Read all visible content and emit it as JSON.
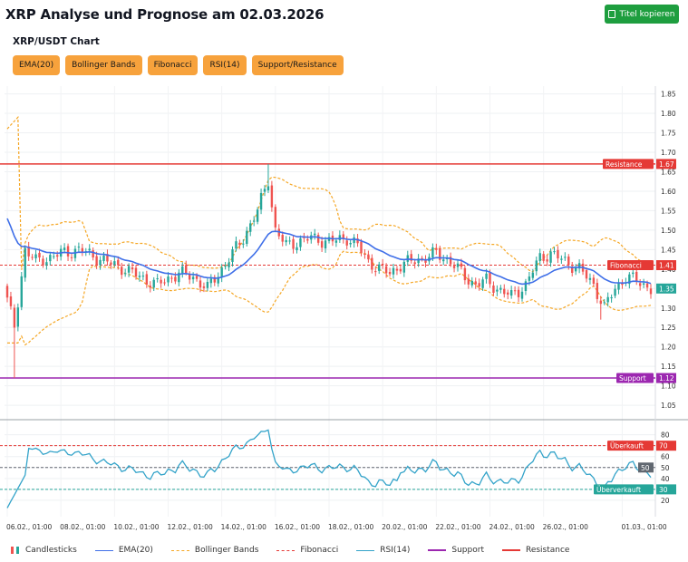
{
  "header": {
    "title": "XRP Analyse und Prognose am 02.03.2026",
    "copy_label": "Titel kopieren"
  },
  "chart_title": "XRP/USDT Chart",
  "indicators": [
    "EMA(20)",
    "Bollinger Bands",
    "Fibonacci",
    "RSI(14)",
    "Support/Resistance"
  ],
  "legend": [
    {
      "label": "Candlesticks",
      "kind": "candle"
    },
    {
      "label": "EMA(20)",
      "kind": "line",
      "color": "#3f6fe8",
      "dash": false
    },
    {
      "label": "Bollinger Bands",
      "kind": "line",
      "color": "#f5a623",
      "dash": true
    },
    {
      "label": "Fibonacci",
      "kind": "line",
      "color": "#e53935",
      "dash": true
    },
    {
      "label": "RSI(14)",
      "kind": "line",
      "color": "#33a3c9",
      "dash": false
    },
    {
      "label": "Support",
      "kind": "line",
      "color": "#9c27b0",
      "dash": false
    },
    {
      "label": "Resistance",
      "kind": "line",
      "color": "#e53935",
      "dash": false
    }
  ],
  "colors": {
    "up": "#26a69a",
    "down": "#ef5350",
    "ema": "#3f6fe8",
    "bollinger": "#f5a623",
    "rsi": "#33a3c9",
    "support": "#9c27b0",
    "resistance": "#e53935",
    "fibonacci": "#e53935",
    "current": "#26a69a"
  },
  "chart_data": {
    "type": "candlestick",
    "price_axis": {
      "min": 1.02,
      "max": 1.87,
      "ticks": [
        1.05,
        1.1,
        1.15,
        1.2,
        1.25,
        1.3,
        1.35,
        1.4,
        1.45,
        1.5,
        1.55,
        1.6,
        1.65,
        1.7,
        1.75,
        1.8,
        1.85
      ],
      "tick_labels": [
        "1.05",
        "1.10",
        "1.15",
        "1.20",
        "1.25",
        "1.30",
        "1.35",
        "1.40",
        "1.45",
        "1.50",
        "1.55",
        "1.60",
        "1.65",
        "1.70",
        "1.75",
        "1.80",
        "1.85"
      ]
    },
    "rsi_axis": {
      "min": 5,
      "max": 88,
      "ticks": [
        20,
        30,
        40,
        50,
        60,
        70,
        80
      ],
      "tick_labels": [
        "20",
        "30",
        "40",
        "50",
        "60",
        "70",
        "80"
      ]
    },
    "x_labels": [
      "06.02., 01:00",
      "08.02., 01:00",
      "10.02., 01:00",
      "12.02., 01:00",
      "14.02., 01:00",
      "16.02., 01:00",
      "18.02., 01:00",
      "20.02., 01:00",
      "22.02., 01:00",
      "24.02., 01:00",
      "26.02., 01:00",
      "01.03., 01:00"
    ],
    "x_label_pos": [
      0,
      15,
      30,
      45,
      60,
      75,
      90,
      105,
      120,
      135,
      150,
      172
    ],
    "levels": [
      {
        "name": "Resistance",
        "value": 1.67,
        "label": "1.67"
      },
      {
        "name": "Fibonacci",
        "value": 1.41,
        "label": "1.41"
      },
      {
        "name": "Support",
        "value": 1.12,
        "label": "1.12"
      }
    ],
    "current_price": {
      "value": 1.35,
      "label": "1.35"
    },
    "rsi_levels": [
      {
        "name": "Überkauft",
        "value": 70,
        "label": "70"
      },
      {
        "name": "Überverkauft",
        "value": 30,
        "label": "30"
      },
      {
        "name": "",
        "value": 50,
        "label": "50"
      }
    ],
    "rsi_current": {
      "value": 50,
      "label": "50"
    },
    "anchors": [
      [
        0,
        1.32
      ],
      [
        2,
        1.25
      ],
      [
        5,
        1.45
      ],
      [
        8,
        1.42
      ],
      [
        12,
        1.43
      ],
      [
        15,
        1.44
      ],
      [
        20,
        1.45
      ],
      [
        25,
        1.43
      ],
      [
        30,
        1.41
      ],
      [
        33,
        1.4
      ],
      [
        37,
        1.38
      ],
      [
        42,
        1.36
      ],
      [
        48,
        1.39
      ],
      [
        52,
        1.38
      ],
      [
        56,
        1.35
      ],
      [
        60,
        1.4
      ],
      [
        63,
        1.44
      ],
      [
        66,
        1.48
      ],
      [
        70,
        1.55
      ],
      [
        73,
        1.63
      ],
      [
        75,
        1.5
      ],
      [
        78,
        1.46
      ],
      [
        81,
        1.47
      ],
      [
        85,
        1.48
      ],
      [
        90,
        1.47
      ],
      [
        95,
        1.48
      ],
      [
        98,
        1.46
      ],
      [
        101,
        1.42
      ],
      [
        104,
        1.4
      ],
      [
        107,
        1.39
      ],
      [
        110,
        1.41
      ],
      [
        113,
        1.42
      ],
      [
        117,
        1.43
      ],
      [
        120,
        1.44
      ],
      [
        124,
        1.42
      ],
      [
        128,
        1.38
      ],
      [
        131,
        1.36
      ],
      [
        134,
        1.37
      ],
      [
        137,
        1.35
      ],
      [
        141,
        1.33
      ],
      [
        145,
        1.36
      ],
      [
        149,
        1.43
      ],
      [
        152,
        1.44
      ],
      [
        156,
        1.42
      ],
      [
        160,
        1.4
      ],
      [
        164,
        1.36
      ],
      [
        167,
        1.3
      ],
      [
        170,
        1.35
      ],
      [
        173,
        1.38
      ],
      [
        176,
        1.37
      ],
      [
        180,
        1.35
      ]
    ],
    "candle_count": 181
  }
}
